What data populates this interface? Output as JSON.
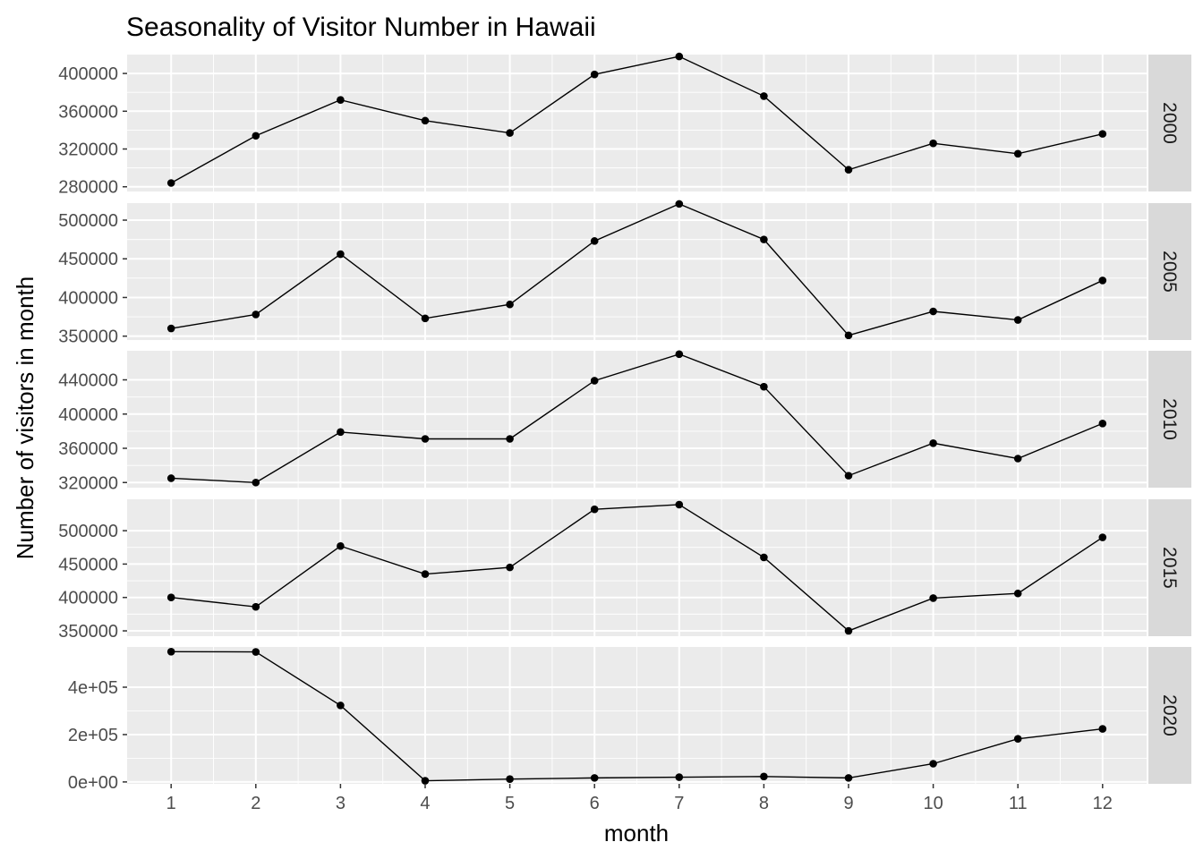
{
  "chart_data": {
    "type": "line",
    "title": "Seasonality of Visitor Number in Hawaii",
    "xlabel": "month",
    "ylabel": "Number of visitors in month",
    "x": [
      1,
      2,
      3,
      4,
      5,
      6,
      7,
      8,
      9,
      10,
      11,
      12
    ],
    "x_ticks": [
      "1",
      "2",
      "3",
      "4",
      "5",
      "6",
      "7",
      "8",
      "9",
      "10",
      "11",
      "12"
    ],
    "grid": true,
    "facets": [
      {
        "strip": "2000",
        "ylim": [
          275000,
          420000
        ],
        "y_ticks": [
          280000,
          320000,
          360000,
          400000
        ],
        "y_tick_labels": [
          "280000",
          "320000",
          "360000",
          "400000"
        ],
        "values": [
          284000,
          334000,
          372000,
          350000,
          337000,
          399000,
          418000,
          376000,
          298000,
          326000,
          315000,
          336000
        ]
      },
      {
        "strip": "2005",
        "ylim": [
          345000,
          522000
        ],
        "y_ticks": [
          350000,
          400000,
          450000,
          500000
        ],
        "y_tick_labels": [
          "350000",
          "400000",
          "450000",
          "500000"
        ],
        "values": [
          360000,
          378000,
          456000,
          373000,
          391000,
          473000,
          521000,
          475000,
          351000,
          382000,
          371000,
          422000
        ]
      },
      {
        "strip": "2010",
        "ylim": [
          314000,
          474000
        ],
        "y_ticks": [
          320000,
          360000,
          400000,
          440000
        ],
        "y_tick_labels": [
          "320000",
          "360000",
          "400000",
          "440000"
        ],
        "values": [
          325000,
          320000,
          379000,
          371000,
          371000,
          439000,
          470000,
          432000,
          328000,
          366000,
          348000,
          389000
        ]
      },
      {
        "strip": "2015",
        "ylim": [
          342000,
          547000
        ],
        "y_ticks": [
          350000,
          400000,
          450000,
          500000
        ],
        "y_tick_labels": [
          "350000",
          "400000",
          "450000",
          "500000"
        ],
        "values": [
          400000,
          386000,
          477000,
          435000,
          445000,
          532000,
          539000,
          460000,
          350000,
          399000,
          406000,
          490000
        ]
      },
      {
        "strip": "2020",
        "ylim": [
          -8000,
          570000
        ],
        "y_ticks": [
          0,
          200000,
          400000
        ],
        "y_tick_labels": [
          "0e+00",
          "2e+05",
          "4e+05"
        ],
        "values": [
          550000,
          549000,
          323000,
          5000,
          12000,
          17000,
          20000,
          23000,
          17000,
          77000,
          182000,
          224000
        ]
      }
    ]
  },
  "colors": {
    "panel_background": "#ebebeb",
    "grid_major": "#ffffff",
    "strip_background": "#d9d9d9",
    "line": "#000000",
    "point": "#000000"
  }
}
